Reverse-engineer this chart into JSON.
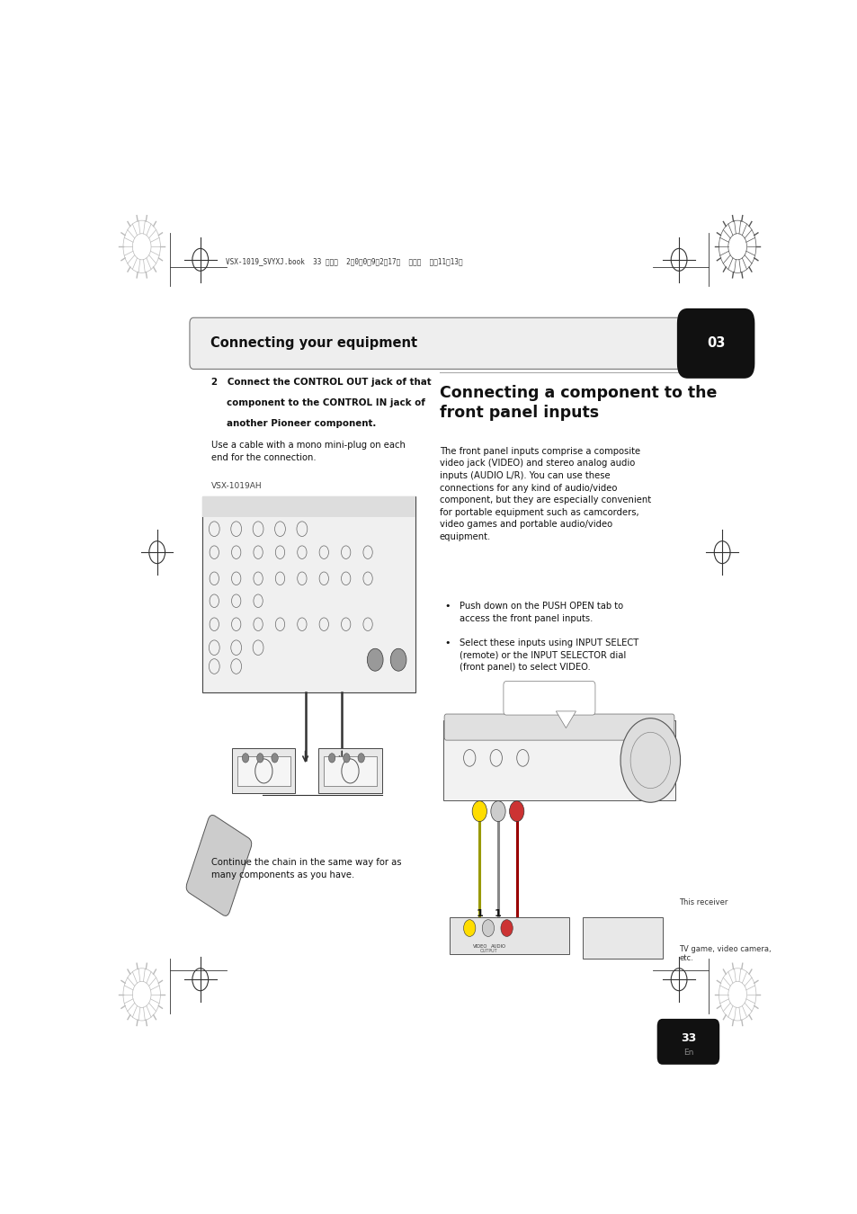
{
  "bg_color": "#ffffff",
  "page_width": 9.54,
  "page_height": 13.5,
  "header_bar_text": "Connecting your equipment",
  "header_number": "03",
  "section1_heading1": "2   Connect the CONTROL OUT jack of that",
  "section1_heading2": "component to the CONTROL IN jack of",
  "section1_heading3": "another Pioneer component.",
  "section1_body": "Use a cable with a mono mini-plug on each\nend for the connection.",
  "section1_label": "VSX-1019AH",
  "section2_heading": "Connecting a component to the\nfront panel inputs",
  "section2_body": "The front panel inputs comprise a composite\nvideo jack (VIDEO) and stereo analog audio\ninputs (AUDIO L/R). You can use these\nconnections for any kind of audio/video\ncomponent, but they are especially convenient\nfor portable equipment such as camcorders,\nvideo games and portable audio/video\nequipment.",
  "bullet1_text": "Push down on the PUSH OPEN tab to\naccess the front panel inputs.",
  "bullet2_text": "Select these inputs using INPUT SELECT\n(remote) or the INPUT SELECTOR dial\n(front panel) to select VIDEO.",
  "caption_receiver": "This receiver",
  "caption_tv": "TV game, video camera,\netc.",
  "footer_continue": "Continue the chain in the same way for as\nmany components as you have.",
  "page_number": "33",
  "page_lang": "En",
  "header_file_text": "VSX-1019_SVYXJ.book  33 ページ  2　0　0　9年2月17日  火曜日  午前11時13分"
}
